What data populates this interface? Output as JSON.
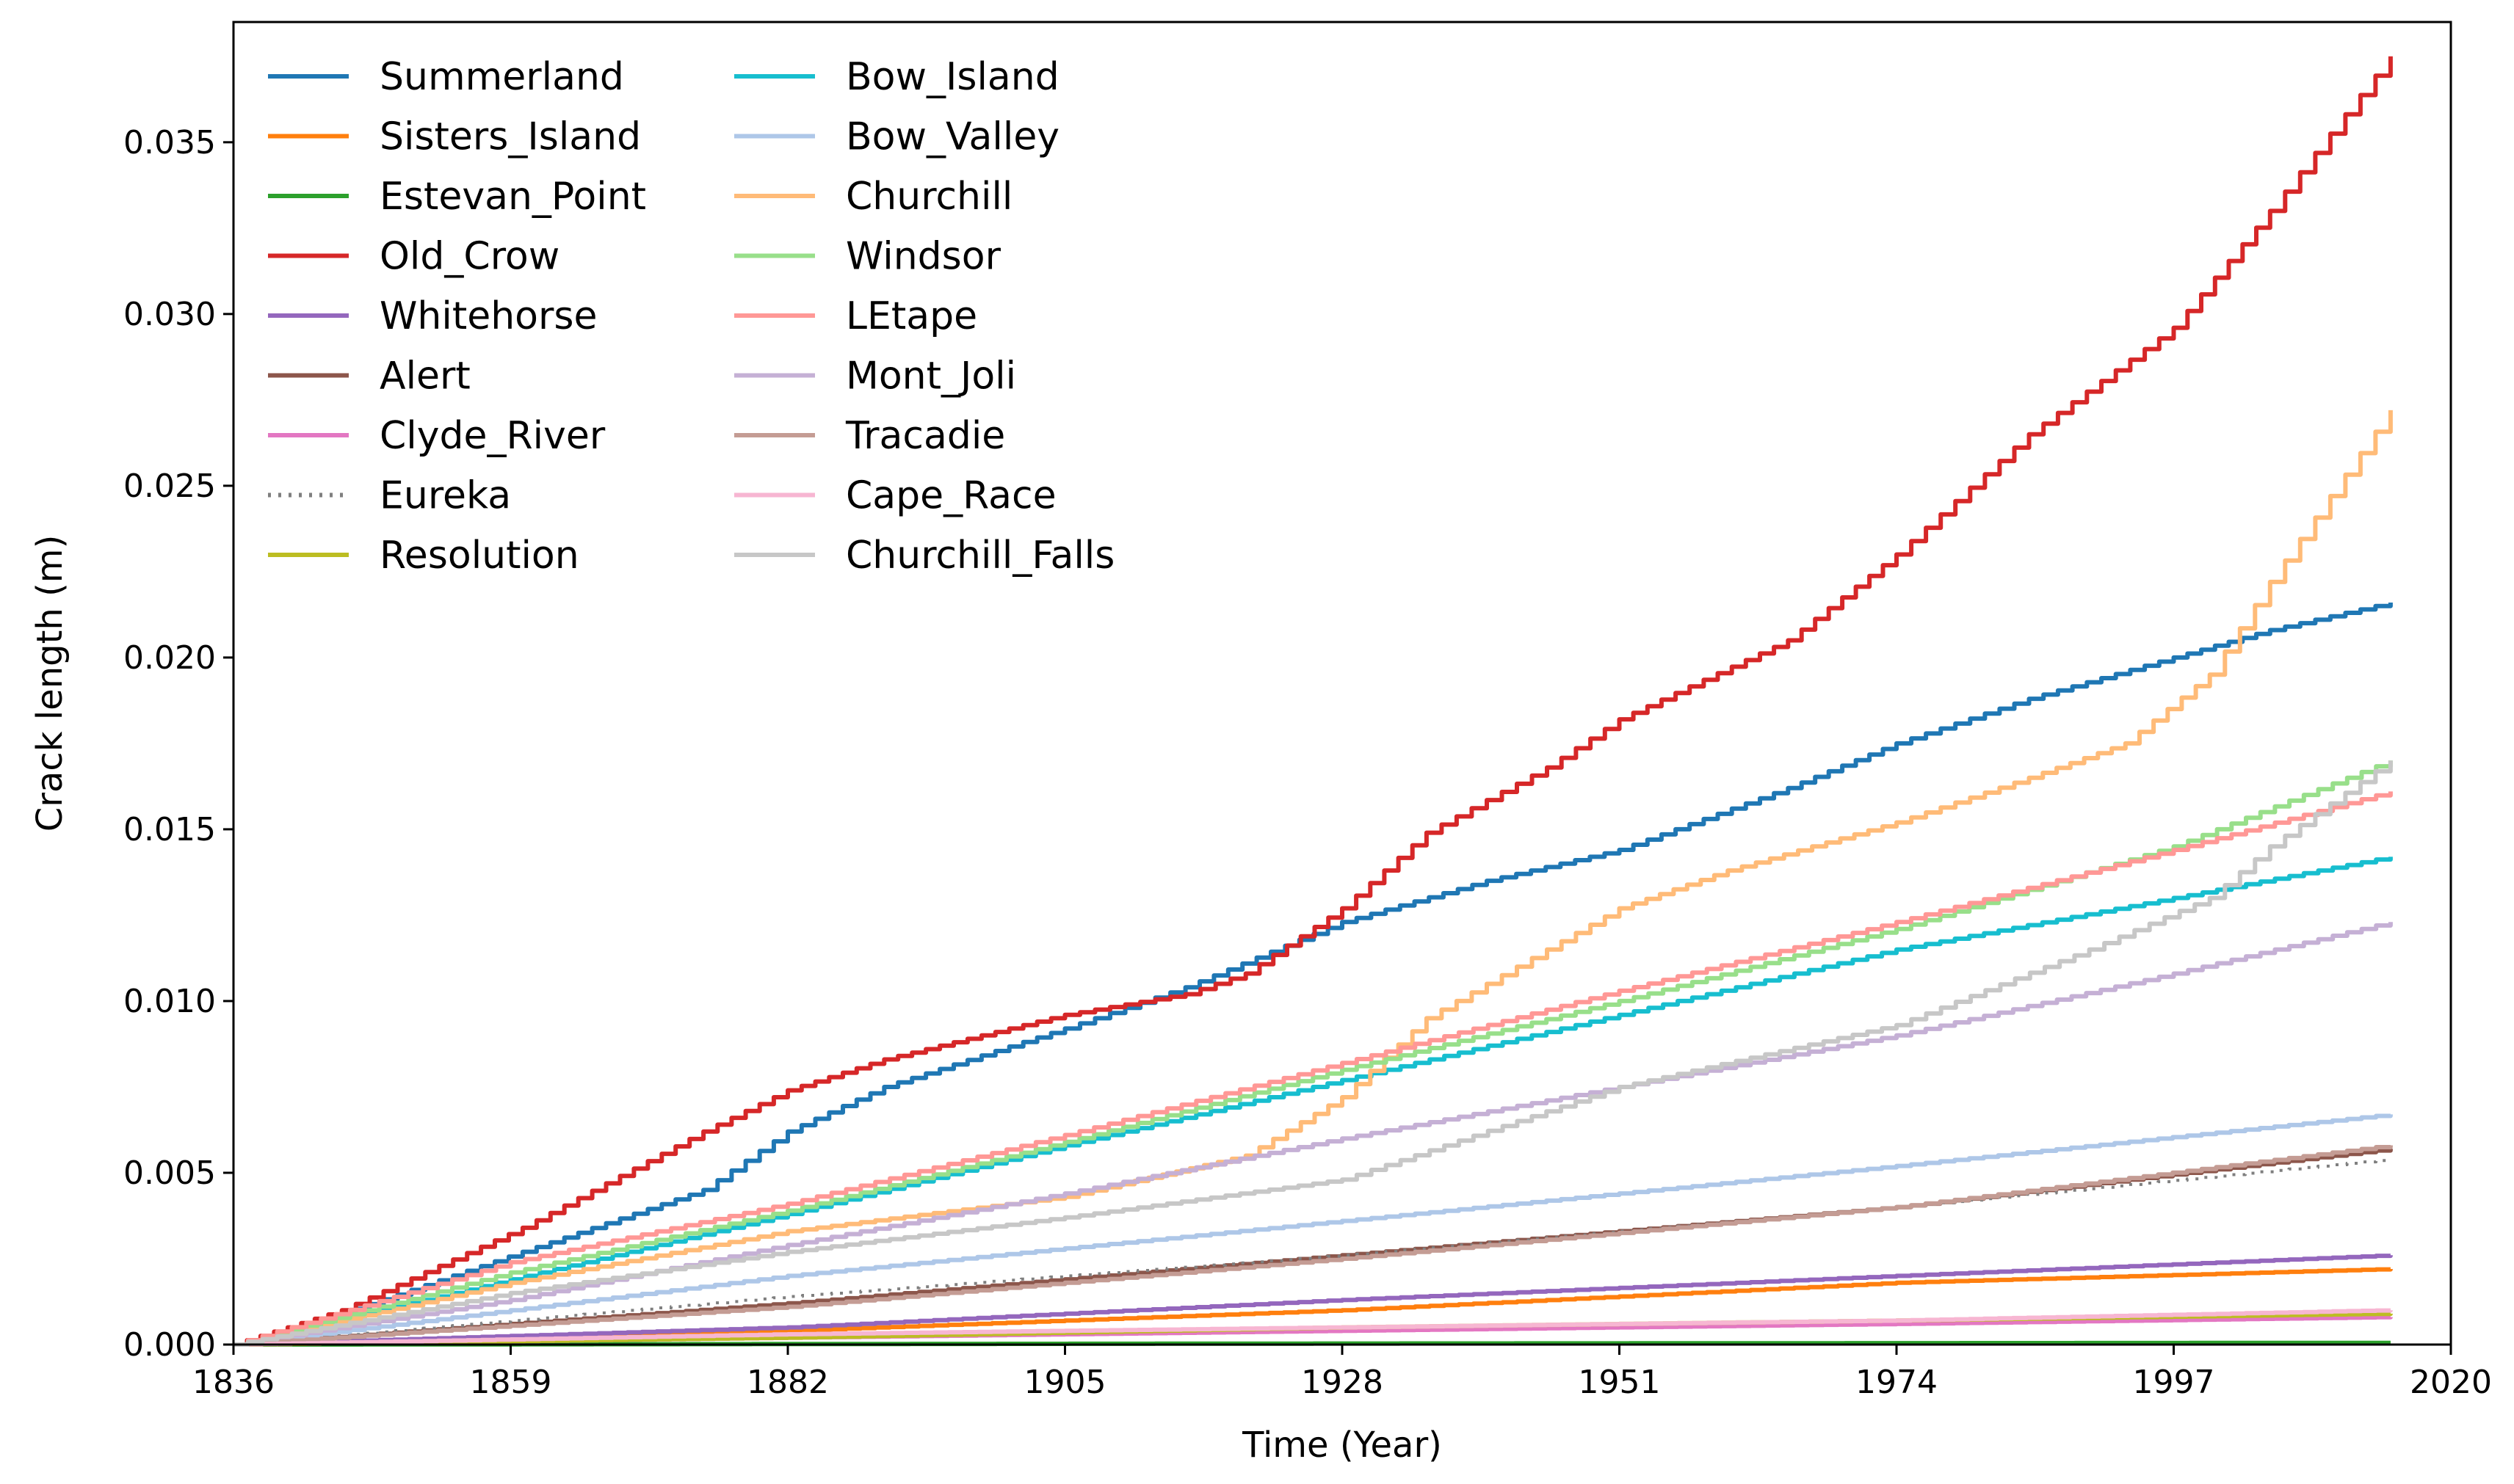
{
  "chart_data": {
    "type": "line",
    "title": "",
    "xlabel": "Time (Year)",
    "ylabel": "Crack length (m)",
    "xlim": [
      1836,
      2020
    ],
    "ylim": [
      0,
      0.0385
    ],
    "xticks": [
      1836,
      1859,
      1882,
      1905,
      1928,
      1951,
      1974,
      1997,
      2020
    ],
    "yticks": [
      0.0,
      0.005,
      0.01,
      0.015,
      0.02,
      0.025,
      0.03,
      0.035
    ],
    "ytick_labels": [
      "0.000",
      "0.005",
      "0.010",
      "0.015",
      "0.020",
      "0.025",
      "0.030",
      "0.035"
    ],
    "grid": false,
    "legend_position": "top-left",
    "legend_columns": 2,
    "series": [
      {
        "name": "Summerland",
        "color": "#1f77b4",
        "x": [
          1836,
          1845,
          1860,
          1875,
          1882,
          1890,
          1905,
          1915,
          1928,
          1940,
          1951,
          1965,
          1974,
          1985,
          1997,
          2005,
          2015
        ],
        "values": [
          0,
          0.0009,
          0.0027,
          0.0045,
          0.0062,
          0.0075,
          0.0092,
          0.0104,
          0.0123,
          0.0135,
          0.0144,
          0.0162,
          0.0175,
          0.0188,
          0.02,
          0.0208,
          0.0216
        ]
      },
      {
        "name": "Sisters_Island",
        "color": "#ff7f0e",
        "x": [
          1836,
          1882,
          1928,
          1974,
          2015
        ],
        "values": [
          0,
          0.0004,
          0.001,
          0.0018,
          0.0022
        ]
      },
      {
        "name": "Estevan_Point",
        "color": "#2ca02c",
        "x": [
          1836,
          1928,
          2015
        ],
        "values": [
          0,
          3e-05,
          5e-05
        ]
      },
      {
        "name": "Old_Crow",
        "color": "#d62728",
        "x": [
          1836,
          1845,
          1860,
          1875,
          1882,
          1890,
          1905,
          1915,
          1920,
          1928,
          1935,
          1945,
          1951,
          1965,
          1974,
          1985,
          1997,
          2005,
          2015
        ],
        "values": [
          0,
          0.001,
          0.0034,
          0.0062,
          0.0074,
          0.0083,
          0.0096,
          0.0102,
          0.0108,
          0.0127,
          0.0149,
          0.0168,
          0.0182,
          0.0205,
          0.023,
          0.0265,
          0.0296,
          0.033,
          0.0375
        ]
      },
      {
        "name": "Whitehorse",
        "color": "#9467bd",
        "x": [
          1836,
          1882,
          1928,
          1974,
          2015
        ],
        "values": [
          0,
          0.0005,
          0.0013,
          0.002,
          0.0026
        ]
      },
      {
        "name": "Alert",
        "color": "#8c564b",
        "x": [
          1836,
          1882,
          1928,
          1974,
          2015
        ],
        "values": [
          0,
          0.0012,
          0.0026,
          0.004,
          0.0057
        ]
      },
      {
        "name": "Clyde_River",
        "color": "#e377c2",
        "x": [
          1836,
          1882,
          1928,
          1974,
          2015
        ],
        "values": [
          0,
          0.0002,
          0.0004,
          0.0006,
          0.0008
        ]
      },
      {
        "name": "Eureka",
        "color": "#7f7f7f",
        "dashed": true,
        "x": [
          1836,
          1882,
          1928,
          1974,
          2015
        ],
        "values": [
          0,
          0.0014,
          0.0026,
          0.004,
          0.0054
        ]
      },
      {
        "name": "Resolution",
        "color": "#bcbd22",
        "x": [
          1836,
          1882,
          1928,
          1974,
          2015
        ],
        "values": [
          0,
          0.0002,
          0.0005,
          0.0007,
          0.0009
        ]
      },
      {
        "name": "Bow_Island",
        "color": "#17becf",
        "x": [
          1836,
          1859,
          1882,
          1905,
          1928,
          1951,
          1974,
          1997,
          2015
        ],
        "values": [
          0,
          0.0019,
          0.0038,
          0.0058,
          0.0077,
          0.0096,
          0.0115,
          0.013,
          0.0142
        ]
      },
      {
        "name": "Bow_Valley",
        "color": "#aec7e8",
        "x": [
          1836,
          1882,
          1928,
          1974,
          2015
        ],
        "values": [
          0,
          0.002,
          0.0036,
          0.0052,
          0.0067
        ]
      },
      {
        "name": "Churchill",
        "color": "#ffbb78",
        "x": [
          1836,
          1859,
          1882,
          1905,
          1920,
          1928,
          1935,
          1945,
          1951,
          1960,
          1974,
          1985,
          1993,
          2000,
          2005,
          2015
        ],
        "values": [
          0,
          0.0018,
          0.0033,
          0.0043,
          0.0055,
          0.0072,
          0.0095,
          0.0115,
          0.0127,
          0.0138,
          0.0152,
          0.0165,
          0.0175,
          0.0195,
          0.0222,
          0.0272
        ]
      },
      {
        "name": "Windsor",
        "color": "#98df8a",
        "x": [
          1836,
          1859,
          1882,
          1905,
          1928,
          1951,
          1974,
          1997,
          2015
        ],
        "values": [
          0,
          0.0021,
          0.0039,
          0.0059,
          0.008,
          0.01,
          0.0121,
          0.0145,
          0.017
        ]
      },
      {
        "name": "LEtape",
        "color": "#ff9896",
        "x": [
          1836,
          1859,
          1882,
          1905,
          1928,
          1951,
          1974,
          1997,
          2015
        ],
        "values": [
          0,
          0.0024,
          0.0041,
          0.0061,
          0.0082,
          0.0103,
          0.0123,
          0.0144,
          0.0161
        ]
      },
      {
        "name": "Mont_Joli",
        "color": "#c5b0d5",
        "x": [
          1836,
          1859,
          1882,
          1905,
          1928,
          1951,
          1974,
          1997,
          2015
        ],
        "values": [
          0,
          0.0013,
          0.0029,
          0.0044,
          0.006,
          0.0075,
          0.009,
          0.0108,
          0.0123
        ]
      },
      {
        "name": "Tracadie",
        "color": "#c49c94",
        "x": [
          1836,
          1882,
          1928,
          1974,
          2015
        ],
        "values": [
          0,
          0.0011,
          0.0025,
          0.004,
          0.0058
        ]
      },
      {
        "name": "Cape_Race",
        "color": "#f7b6d2",
        "x": [
          1836,
          1882,
          1928,
          1974,
          2015
        ],
        "values": [
          0,
          0.0003,
          0.0005,
          0.0007,
          0.001
        ]
      },
      {
        "name": "Churchill_Falls",
        "color": "#c7c7c7",
        "x": [
          1836,
          1859,
          1882,
          1905,
          1928,
          1951,
          1974,
          1990,
          2000,
          2005,
          2015
        ],
        "values": [
          0,
          0.0015,
          0.0027,
          0.0037,
          0.0048,
          0.0075,
          0.0093,
          0.0115,
          0.013,
          0.0145,
          0.017
        ]
      }
    ]
  }
}
